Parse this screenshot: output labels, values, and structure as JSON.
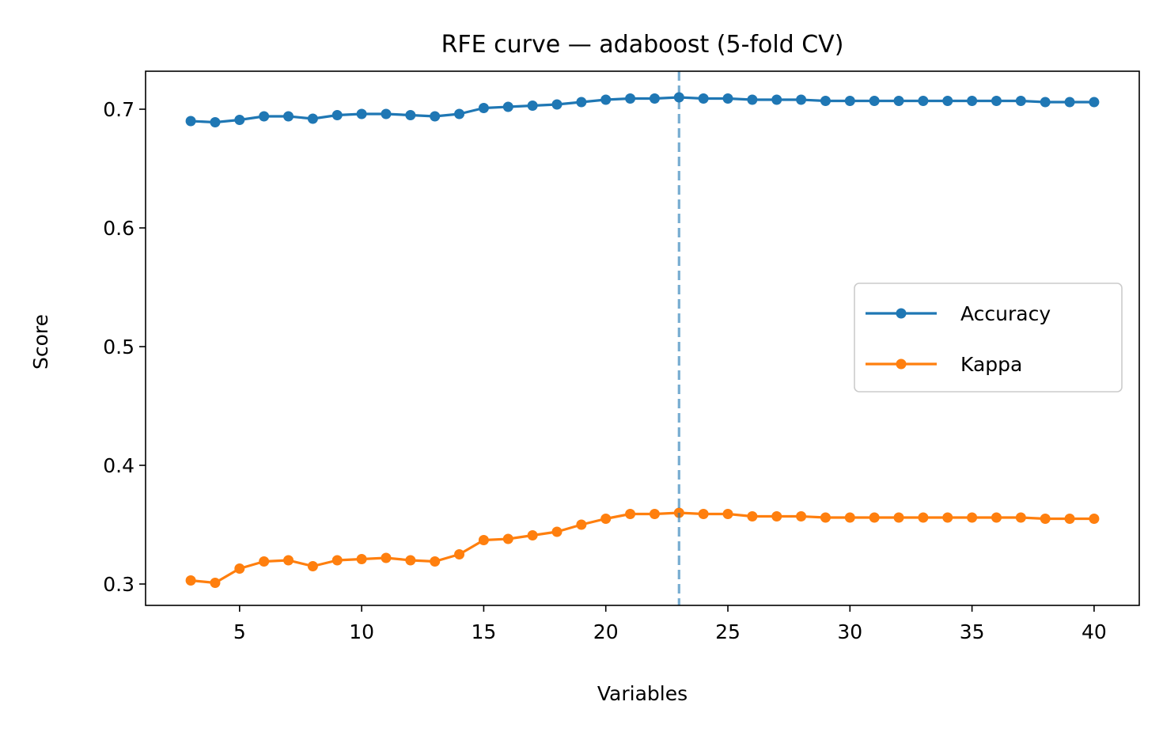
{
  "chart_data": {
    "type": "line",
    "title": "RFE curve — adaboost (5-fold CV)",
    "xlabel": "Variables",
    "ylabel": "Score",
    "xlim": [
      1.15,
      41.85
    ],
    "ylim": [
      0.282,
      0.732
    ],
    "xticks": [
      5,
      10,
      15,
      20,
      25,
      30,
      35,
      40
    ],
    "yticks": [
      0.3,
      0.4,
      0.5,
      0.6,
      0.7
    ],
    "grid": false,
    "legend": "center-right",
    "x": [
      3,
      4,
      5,
      6,
      7,
      8,
      9,
      10,
      11,
      12,
      13,
      14,
      15,
      16,
      17,
      18,
      19,
      20,
      21,
      22,
      23,
      24,
      25,
      26,
      27,
      28,
      29,
      30,
      31,
      32,
      33,
      34,
      35,
      36,
      37,
      38,
      39,
      40
    ],
    "series": [
      {
        "name": "Accuracy",
        "color": "#1f77b4",
        "values": [
          0.69,
          0.689,
          0.691,
          0.694,
          0.694,
          0.692,
          0.695,
          0.696,
          0.696,
          0.695,
          0.694,
          0.696,
          0.701,
          0.702,
          0.703,
          0.704,
          0.706,
          0.708,
          0.709,
          0.709,
          0.71,
          0.709,
          0.709,
          0.708,
          0.708,
          0.708,
          0.707,
          0.707,
          0.707,
          0.707,
          0.707,
          0.707,
          0.707,
          0.707,
          0.707,
          0.706,
          0.706,
          0.706
        ]
      },
      {
        "name": "Kappa",
        "color": "#ff7f0e",
        "values": [
          0.303,
          0.301,
          0.313,
          0.319,
          0.32,
          0.315,
          0.32,
          0.321,
          0.322,
          0.32,
          0.319,
          0.325,
          0.337,
          0.338,
          0.341,
          0.344,
          0.35,
          0.355,
          0.359,
          0.359,
          0.36,
          0.359,
          0.359,
          0.357,
          0.357,
          0.357,
          0.356,
          0.356,
          0.356,
          0.356,
          0.356,
          0.356,
          0.356,
          0.356,
          0.356,
          0.355,
          0.355,
          0.355
        ]
      }
    ],
    "vline": {
      "x": 23,
      "color": "#1f77b4",
      "style": "dashed"
    }
  }
}
